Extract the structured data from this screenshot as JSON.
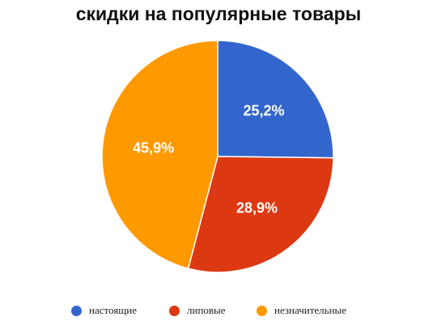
{
  "chart_data": {
    "type": "pie",
    "title": "скидки на популярные товары",
    "series": [
      {
        "name": "настоящие",
        "value": 25.2,
        "label": "25,2%",
        "color": "#3366cc"
      },
      {
        "name": "липовые",
        "value": 28.9,
        "label": "28,9%",
        "color": "#dc3912"
      },
      {
        "name": "незначительные",
        "value": 45.9,
        "label": "45,9%",
        "color": "#ff9900"
      }
    ],
    "legend": "bottom",
    "start_angle": "12 o'clock",
    "direction": "clockwise"
  }
}
